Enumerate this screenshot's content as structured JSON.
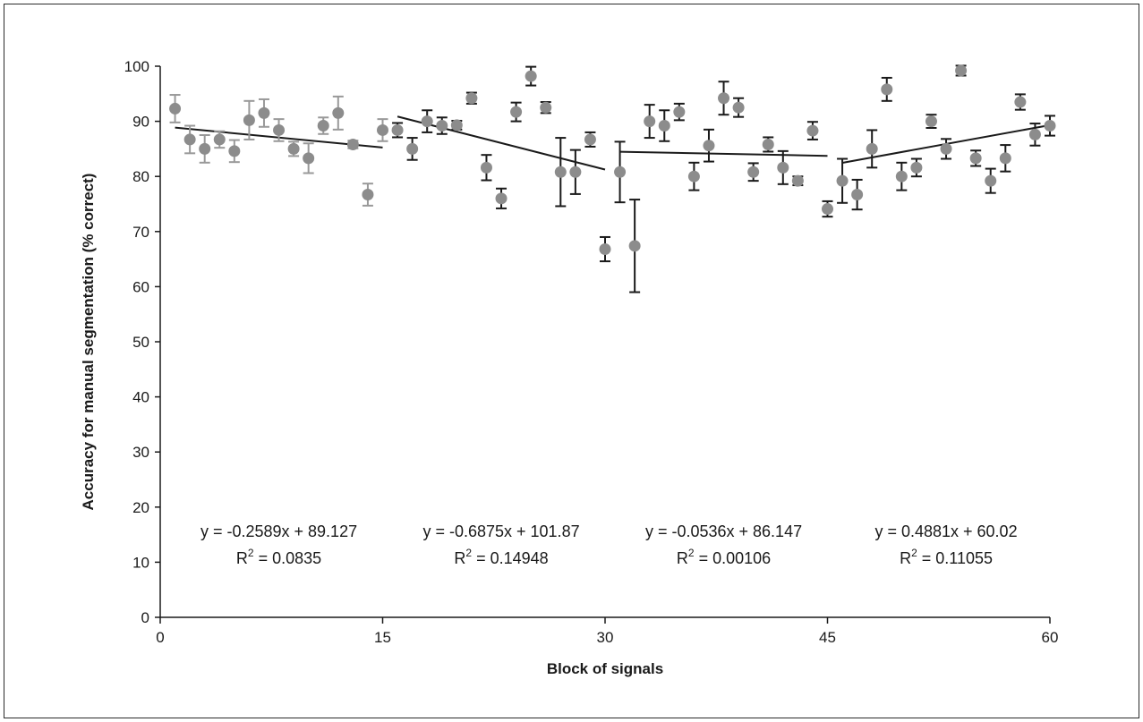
{
  "chart_data": {
    "type": "scatter",
    "xlabel": "Block of signals",
    "ylabel": "Accuracy for manual segmentation (% correct)",
    "xlim": [
      0,
      60
    ],
    "ylim": [
      0,
      100
    ],
    "xticks": [
      "0",
      "15",
      "30",
      "45",
      "60"
    ],
    "yticks": [
      "0",
      "10",
      "20",
      "30",
      "40",
      "50",
      "60",
      "70",
      "80",
      "90",
      "100"
    ],
    "grid": false,
    "legend": "none",
    "marker_color": "#8c8c8c",
    "segments": [
      {
        "x_range": [
          1,
          15
        ],
        "errorbar_color": "#999999",
        "equation": "y = -0.2589x + 89.127",
        "r2_label": "R",
        "r2_value": " = 0.0835",
        "slope": -0.2589,
        "intercept": 89.127,
        "points": [
          {
            "x": 1,
            "y": 92.3,
            "err": 2.5
          },
          {
            "x": 2,
            "y": 86.7,
            "err": 2.5
          },
          {
            "x": 3,
            "y": 85.0,
            "err": 2.5
          },
          {
            "x": 4,
            "y": 86.7,
            "err": 1.5
          },
          {
            "x": 5,
            "y": 84.6,
            "err": 2.0
          },
          {
            "x": 6,
            "y": 90.2,
            "err": 3.5
          },
          {
            "x": 7,
            "y": 91.5,
            "err": 2.5
          },
          {
            "x": 8,
            "y": 88.4,
            "err": 2.0
          },
          {
            "x": 9,
            "y": 85.0,
            "err": 1.3
          },
          {
            "x": 10,
            "y": 83.3,
            "err": 2.7
          },
          {
            "x": 11,
            "y": 89.2,
            "err": 1.5
          },
          {
            "x": 12,
            "y": 91.5,
            "err": 3.0
          },
          {
            "x": 13,
            "y": 85.8,
            "err": 0.7
          },
          {
            "x": 14,
            "y": 76.7,
            "err": 2.0
          },
          {
            "x": 15,
            "y": 88.4,
            "err": 2.0
          }
        ]
      },
      {
        "x_range": [
          16,
          30
        ],
        "errorbar_color": "#1a1a1a",
        "equation": "y = -0.6875x + 101.87",
        "r2_label": "R",
        "r2_value": " = 0.14948",
        "slope": -0.6875,
        "intercept": 101.87,
        "points": [
          {
            "x": 16,
            "y": 88.4,
            "err": 1.3
          },
          {
            "x": 17,
            "y": 85.0,
            "err": 2.0
          },
          {
            "x": 18,
            "y": 90.0,
            "err": 2.0
          },
          {
            "x": 19,
            "y": 89.2,
            "err": 1.5
          },
          {
            "x": 20,
            "y": 89.3,
            "err": 0.8
          },
          {
            "x": 21,
            "y": 94.2,
            "err": 1.0
          },
          {
            "x": 22,
            "y": 81.6,
            "err": 2.3
          },
          {
            "x": 23,
            "y": 76.0,
            "err": 1.8
          },
          {
            "x": 24,
            "y": 91.7,
            "err": 1.7
          },
          {
            "x": 25,
            "y": 98.2,
            "err": 1.7
          },
          {
            "x": 26,
            "y": 92.5,
            "err": 1.0
          },
          {
            "x": 27,
            "y": 80.8,
            "err": 6.2
          },
          {
            "x": 28,
            "y": 80.8,
            "err": 4.0
          },
          {
            "x": 29,
            "y": 86.7,
            "err": 1.3
          },
          {
            "x": 30,
            "y": 66.8,
            "err": 2.2
          }
        ]
      },
      {
        "x_range": [
          31,
          45
        ],
        "errorbar_color": "#1a1a1a",
        "equation": "y = -0.0536x + 86.147",
        "r2_label": "R",
        "r2_value": " = 0.00106",
        "slope": -0.0536,
        "intercept": 86.147,
        "points": [
          {
            "x": 31,
            "y": 80.8,
            "err": 5.5
          },
          {
            "x": 32,
            "y": 67.4,
            "err": 8.4
          },
          {
            "x": 33,
            "y": 90.0,
            "err": 3.0
          },
          {
            "x": 34,
            "y": 89.2,
            "err": 2.8
          },
          {
            "x": 35,
            "y": 91.7,
            "err": 1.5
          },
          {
            "x": 36,
            "y": 80.0,
            "err": 2.5
          },
          {
            "x": 37,
            "y": 85.6,
            "err": 2.9
          },
          {
            "x": 38,
            "y": 94.2,
            "err": 3.0
          },
          {
            "x": 39,
            "y": 92.5,
            "err": 1.7
          },
          {
            "x": 40,
            "y": 80.8,
            "err": 1.6
          },
          {
            "x": 41,
            "y": 85.8,
            "err": 1.3
          },
          {
            "x": 42,
            "y": 81.6,
            "err": 3.0
          },
          {
            "x": 43,
            "y": 79.2,
            "err": 0.8
          },
          {
            "x": 44,
            "y": 88.3,
            "err": 1.6
          },
          {
            "x": 45,
            "y": 74.1,
            "err": 1.4
          }
        ]
      },
      {
        "x_range": [
          46,
          60
        ],
        "errorbar_color": "#1a1a1a",
        "equation": "y = 0.4881x + 60.02",
        "r2_label": "R",
        "r2_value": " = 0.11055",
        "slope": 0.4881,
        "intercept": 60.02,
        "points": [
          {
            "x": 46,
            "y": 79.2,
            "err": 4.0
          },
          {
            "x": 47,
            "y": 76.7,
            "err": 2.7
          },
          {
            "x": 48,
            "y": 85.0,
            "err": 3.4
          },
          {
            "x": 49,
            "y": 95.8,
            "err": 2.1
          },
          {
            "x": 50,
            "y": 80.0,
            "err": 2.5
          },
          {
            "x": 51,
            "y": 81.6,
            "err": 1.6
          },
          {
            "x": 52,
            "y": 90.0,
            "err": 1.2
          },
          {
            "x": 53,
            "y": 85.0,
            "err": 1.8
          },
          {
            "x": 54,
            "y": 99.2,
            "err": 0.9
          },
          {
            "x": 55,
            "y": 83.3,
            "err": 1.4
          },
          {
            "x": 56,
            "y": 79.2,
            "err": 2.2
          },
          {
            "x": 57,
            "y": 83.3,
            "err": 2.4
          },
          {
            "x": 58,
            "y": 93.5,
            "err": 1.4
          },
          {
            "x": 59,
            "y": 87.6,
            "err": 2.0
          },
          {
            "x": 60,
            "y": 89.2,
            "err": 1.8
          }
        ]
      }
    ]
  }
}
